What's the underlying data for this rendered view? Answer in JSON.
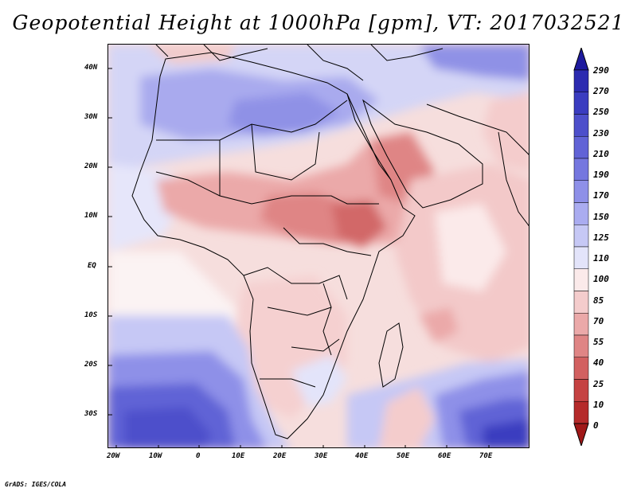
{
  "title": "Geopotential Height at 1000hPa [gpm], VT: 2017032521",
  "credit": "GrADS: IGES/COLA",
  "map": {
    "lat_labels": [
      "40N",
      "30N",
      "20N",
      "10N",
      "EQ",
      "10S",
      "20S",
      "30S"
    ],
    "lon_labels": [
      "20W",
      "10W",
      "0",
      "10E",
      "20E",
      "30E",
      "40E",
      "50E",
      "60E",
      "70E"
    ]
  },
  "colorbar": {
    "labels": [
      "290",
      "270",
      "250",
      "230",
      "210",
      "190",
      "170",
      "150",
      "125",
      "110",
      "100",
      "85",
      "70",
      "55",
      "40",
      "25",
      "10",
      "0"
    ],
    "colors": [
      "#1e1a9e",
      "#2c2bb0",
      "#3a3cc0",
      "#4d4fcb",
      "#6163d6",
      "#7577df",
      "#8e90e8",
      "#aaacf0",
      "#c6c8f5",
      "#e3e4fa",
      "#fbeaea",
      "#f4cccc",
      "#eba9a9",
      "#df8585",
      "#d26060",
      "#c54242",
      "#b52a2a",
      "#a01818"
    ]
  }
}
